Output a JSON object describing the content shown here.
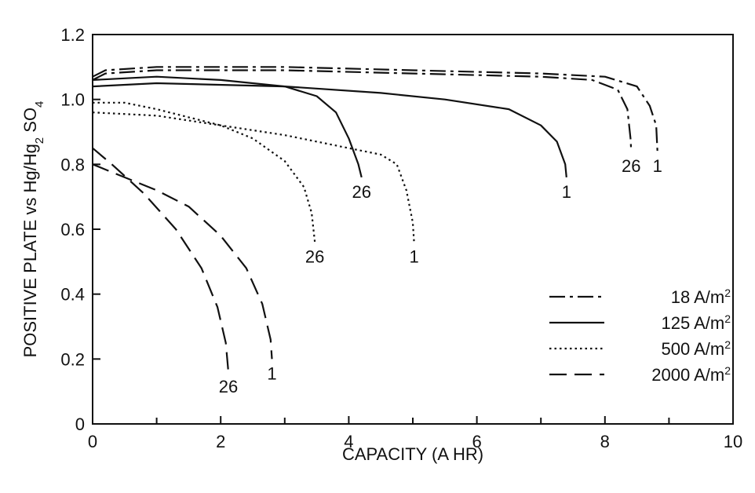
{
  "chart_data": {
    "type": "line",
    "title": "",
    "xlabel": "CAPACITY (A HR)",
    "ylabel": "POSITIVE PLATE vs Hg/Hg2 SO4",
    "xlim": [
      0,
      10
    ],
    "ylim": [
      0,
      1.2
    ],
    "xticks": [
      0,
      2,
      4,
      6,
      8,
      10
    ],
    "xticks_minor": [
      1,
      3,
      5,
      7,
      9
    ],
    "yticks": [
      0,
      0.2,
      0.4,
      0.6,
      0.8,
      1.0,
      1.2
    ],
    "ytick_labels": [
      "0",
      "0.2",
      "0.4",
      "0.6",
      "0.8",
      "1.0",
      "1.2"
    ],
    "grid": false,
    "legend_position": "bottom-right",
    "legend": [
      {
        "text": "18 A/m",
        "sup": "2",
        "dash": "dashdot"
      },
      {
        "text": "125 A/m",
        "sup": "2",
        "dash": "solid"
      },
      {
        "text": "500 A/m",
        "sup": "2",
        "dash": "dotted"
      },
      {
        "text": "2000 A/m",
        "sup": "2",
        "dash": "dashed"
      }
    ],
    "series": [
      {
        "dash": "dashdot",
        "label": "1",
        "points": [
          [
            0,
            1.07
          ],
          [
            0.2,
            1.09
          ],
          [
            1,
            1.1
          ],
          [
            3,
            1.1
          ],
          [
            5,
            1.09
          ],
          [
            7,
            1.08
          ],
          [
            8,
            1.07
          ],
          [
            8.5,
            1.04
          ],
          [
            8.7,
            0.98
          ],
          [
            8.8,
            0.92
          ],
          [
            8.82,
            0.84
          ]
        ]
      },
      {
        "dash": "dashdot",
        "label": "26",
        "points": [
          [
            0,
            1.06
          ],
          [
            0.2,
            1.08
          ],
          [
            1,
            1.09
          ],
          [
            3,
            1.09
          ],
          [
            5,
            1.08
          ],
          [
            7,
            1.07
          ],
          [
            7.8,
            1.06
          ],
          [
            8.2,
            1.03
          ],
          [
            8.35,
            0.97
          ],
          [
            8.4,
            0.88
          ],
          [
            8.41,
            0.84
          ]
        ]
      },
      {
        "dash": "solid",
        "label": "1",
        "points": [
          [
            0,
            1.04
          ],
          [
            1,
            1.05
          ],
          [
            3,
            1.04
          ],
          [
            4.5,
            1.02
          ],
          [
            5.5,
            1.0
          ],
          [
            6.5,
            0.97
          ],
          [
            7.0,
            0.92
          ],
          [
            7.25,
            0.87
          ],
          [
            7.38,
            0.8
          ],
          [
            7.4,
            0.76
          ]
        ]
      },
      {
        "dash": "solid",
        "label": "26",
        "points": [
          [
            0,
            1.06
          ],
          [
            1,
            1.07
          ],
          [
            2,
            1.06
          ],
          [
            3,
            1.04
          ],
          [
            3.5,
            1.01
          ],
          [
            3.8,
            0.96
          ],
          [
            4.0,
            0.88
          ],
          [
            4.15,
            0.8
          ],
          [
            4.2,
            0.76
          ]
        ]
      },
      {
        "dash": "dotted",
        "label": "1",
        "points": [
          [
            0,
            0.96
          ],
          [
            1,
            0.95
          ],
          [
            2,
            0.92
          ],
          [
            3,
            0.89
          ],
          [
            4,
            0.85
          ],
          [
            4.5,
            0.83
          ],
          [
            4.75,
            0.8
          ],
          [
            4.9,
            0.72
          ],
          [
            5.0,
            0.62
          ],
          [
            5.02,
            0.56
          ]
        ]
      },
      {
        "dash": "dotted",
        "label": "26",
        "points": [
          [
            0,
            0.99
          ],
          [
            0.5,
            0.99
          ],
          [
            1,
            0.97
          ],
          [
            2,
            0.92
          ],
          [
            2.5,
            0.88
          ],
          [
            3,
            0.81
          ],
          [
            3.3,
            0.73
          ],
          [
            3.42,
            0.65
          ],
          [
            3.47,
            0.56
          ]
        ]
      },
      {
        "dash": "dashed",
        "label": "1",
        "points": [
          [
            0,
            0.8
          ],
          [
            0.5,
            0.76
          ],
          [
            1,
            0.72
          ],
          [
            1.5,
            0.67
          ],
          [
            2,
            0.58
          ],
          [
            2.4,
            0.48
          ],
          [
            2.65,
            0.37
          ],
          [
            2.78,
            0.26
          ],
          [
            2.8,
            0.2
          ]
        ]
      },
      {
        "dash": "dashed",
        "label": "26",
        "points": [
          [
            0,
            0.85
          ],
          [
            0.3,
            0.8
          ],
          [
            0.8,
            0.71
          ],
          [
            1.3,
            0.6
          ],
          [
            1.7,
            0.48
          ],
          [
            1.95,
            0.36
          ],
          [
            2.08,
            0.25
          ],
          [
            2.12,
            0.16
          ]
        ]
      }
    ]
  }
}
